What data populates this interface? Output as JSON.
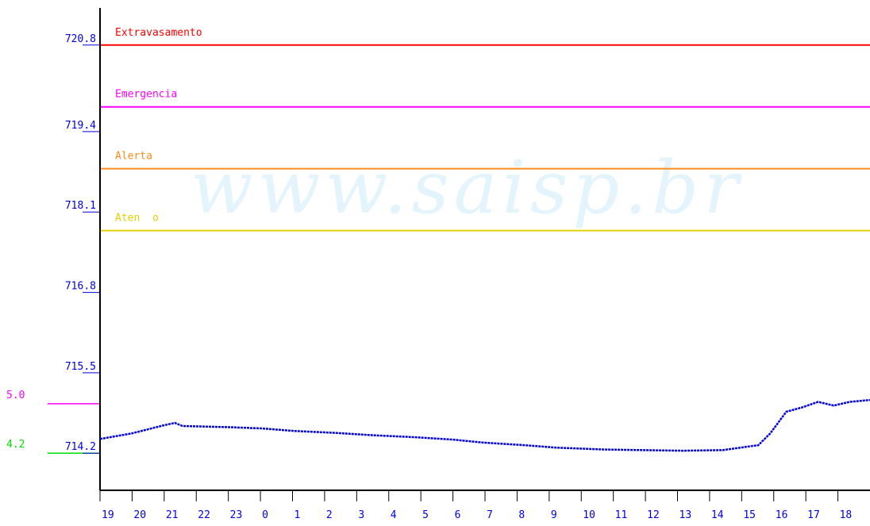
{
  "chart_data": {
    "type": "line",
    "watermark": "www.saisp.br",
    "xlim": [
      0,
      24
    ],
    "ylim": [
      713.6,
      721.4
    ],
    "yticks": [
      720.8,
      719.4,
      718.1,
      716.8,
      715.5,
      714.2
    ],
    "xticks": [
      {
        "value": 0,
        "label": "19"
      },
      {
        "value": 1,
        "label": "20"
      },
      {
        "value": 2,
        "label": "21"
      },
      {
        "value": 3,
        "label": "22"
      },
      {
        "value": 4,
        "label": "23"
      },
      {
        "value": 5,
        "label": "0"
      },
      {
        "value": 6,
        "label": "1"
      },
      {
        "value": 7,
        "label": "2"
      },
      {
        "value": 8,
        "label": "3"
      },
      {
        "value": 9,
        "label": "4"
      },
      {
        "value": 10,
        "label": "5"
      },
      {
        "value": 11,
        "label": "6"
      },
      {
        "value": 12,
        "label": "7"
      },
      {
        "value": 13,
        "label": "8"
      },
      {
        "value": 14,
        "label": "9"
      },
      {
        "value": 15,
        "label": "10"
      },
      {
        "value": 16,
        "label": "11"
      },
      {
        "value": 17,
        "label": "12"
      },
      {
        "value": 18,
        "label": "13"
      },
      {
        "value": 19,
        "label": "14"
      },
      {
        "value": 20,
        "label": "15"
      },
      {
        "value": 21,
        "label": "16"
      },
      {
        "value": 22,
        "label": "17"
      },
      {
        "value": 23,
        "label": "18"
      }
    ],
    "thresholds": [
      {
        "name": "Extravasamento",
        "value": 720.8,
        "color": "#ff0000"
      },
      {
        "name": "Emergencia",
        "value": 719.8,
        "color": "#ff00ff"
      },
      {
        "name": "Alerta",
        "value": 718.8,
        "color": "#ff8c1a"
      },
      {
        "name": "Aten  o",
        "value": 717.8,
        "color": "#e6d000"
      }
    ],
    "markers": [
      {
        "label": "5.0",
        "value": 715.0,
        "color": "#ff00ff"
      },
      {
        "label": "4.2",
        "value": 714.2,
        "color": "#00dd00"
      }
    ],
    "series": [
      {
        "color": "#0000e0",
        "x": [
          0,
          0.99,
          1.98,
          2.33,
          2.57,
          4.06,
          5.05,
          6.04,
          7.28,
          8.51,
          9.75,
          10.99,
          11.98,
          13.22,
          14.21,
          15.69,
          18.17,
          19.41,
          20.52,
          20.89,
          21.39,
          21.88,
          22.38,
          22.87,
          23.37,
          24
        ],
        "values": [
          714.43,
          714.52,
          714.65,
          714.69,
          714.64,
          714.62,
          714.6,
          714.56,
          714.53,
          714.49,
          714.46,
          714.42,
          714.37,
          714.33,
          714.29,
          714.26,
          714.24,
          714.25,
          714.33,
          714.52,
          714.87,
          714.94,
          715.03,
          714.97,
          715.03,
          715.06
        ]
      }
    ]
  }
}
